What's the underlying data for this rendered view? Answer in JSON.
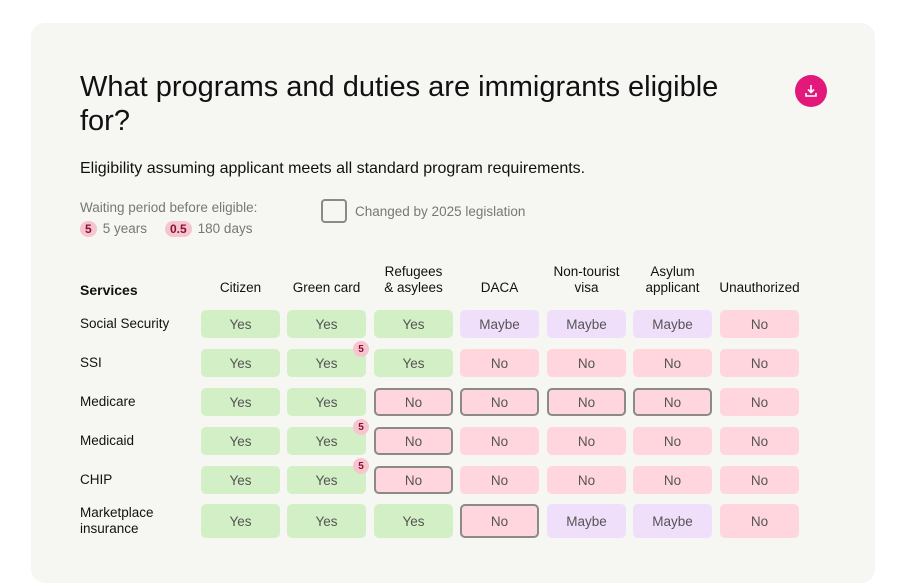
{
  "title": "What programs and duties are immigrants eligible for?",
  "subtitle": "Eligibility assuming applicant meets all standard program requirements.",
  "download_icon": "download-icon",
  "accent_color": "#e2187b",
  "legend": {
    "waiting_label": "Waiting period before eligible:",
    "items": [
      {
        "badge": "5",
        "label": "5 years"
      },
      {
        "badge": "0.5",
        "label": "180 days"
      }
    ],
    "changed_label": "Changed by 2025 legislation"
  },
  "table": {
    "services_header": "Services",
    "columns": [
      "Citizen",
      "Green card",
      "Refugees\n& asylees",
      "DACA",
      "Non-tourist\nvisa",
      "Asylum\napplicant",
      "Unauthorized"
    ],
    "rows": [
      {
        "service": "Social Security",
        "cells": [
          {
            "v": "Yes"
          },
          {
            "v": "Yes"
          },
          {
            "v": "Yes"
          },
          {
            "v": "Maybe"
          },
          {
            "v": "Maybe"
          },
          {
            "v": "Maybe"
          },
          {
            "v": "No"
          }
        ]
      },
      {
        "service": "SSI",
        "cells": [
          {
            "v": "Yes"
          },
          {
            "v": "Yes",
            "wait": "5"
          },
          {
            "v": "Yes"
          },
          {
            "v": "No"
          },
          {
            "v": "No"
          },
          {
            "v": "No"
          },
          {
            "v": "No"
          }
        ]
      },
      {
        "service": "Medicare",
        "cells": [
          {
            "v": "Yes"
          },
          {
            "v": "Yes"
          },
          {
            "v": "No",
            "changed": true
          },
          {
            "v": "No",
            "changed": true
          },
          {
            "v": "No",
            "changed": true
          },
          {
            "v": "No",
            "changed": true
          },
          {
            "v": "No"
          }
        ]
      },
      {
        "service": "Medicaid",
        "cells": [
          {
            "v": "Yes"
          },
          {
            "v": "Yes",
            "wait": "5"
          },
          {
            "v": "No",
            "changed": true
          },
          {
            "v": "No"
          },
          {
            "v": "No"
          },
          {
            "v": "No"
          },
          {
            "v": "No"
          }
        ]
      },
      {
        "service": "CHIP",
        "cells": [
          {
            "v": "Yes"
          },
          {
            "v": "Yes",
            "wait": "5"
          },
          {
            "v": "No",
            "changed": true
          },
          {
            "v": "No"
          },
          {
            "v": "No"
          },
          {
            "v": "No"
          },
          {
            "v": "No"
          }
        ]
      },
      {
        "service": "Marketplace\ninsurance",
        "cells": [
          {
            "v": "Yes"
          },
          {
            "v": "Yes"
          },
          {
            "v": "Yes"
          },
          {
            "v": "No",
            "changed": true
          },
          {
            "v": "Maybe"
          },
          {
            "v": "Maybe"
          },
          {
            "v": "No"
          }
        ]
      }
    ]
  }
}
